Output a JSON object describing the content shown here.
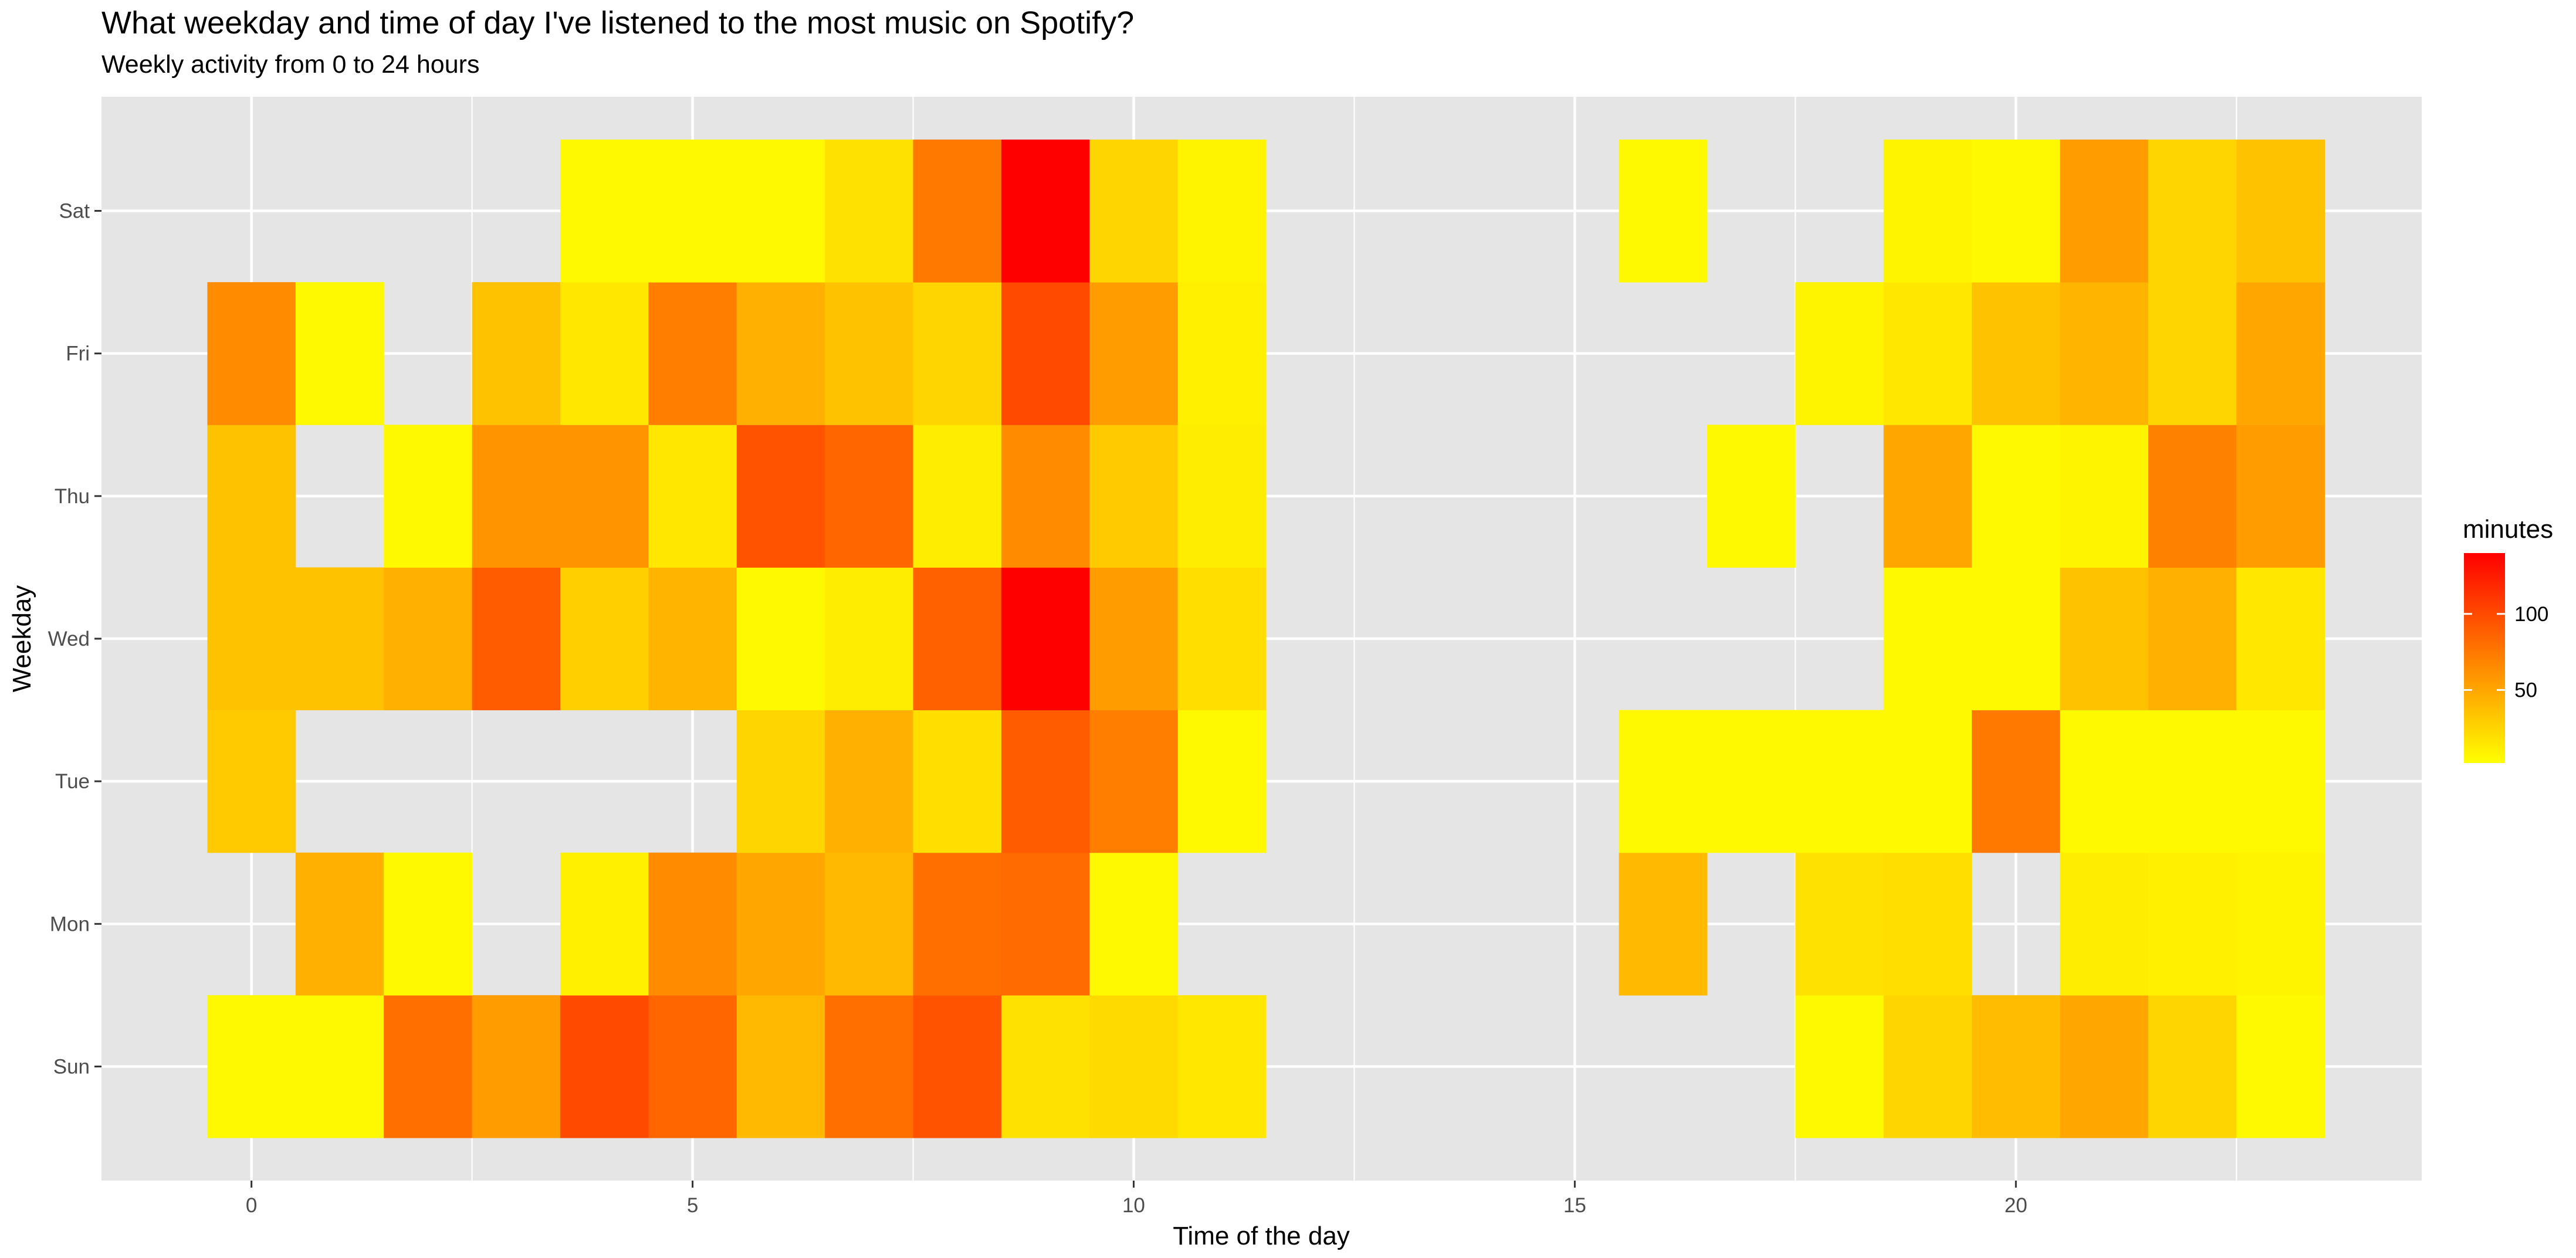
{
  "chart_data": {
    "type": "heatmap",
    "title": "What weekday and time of day I've listened to the most music on Spotify?",
    "subtitle": "Weekly activity from 0 to 24 hours",
    "xlabel": "Time of the day",
    "ylabel": "Weekday",
    "x_ticks": [
      "0",
      "5",
      "10",
      "15",
      "20"
    ],
    "xlim": [
      -1.7,
      24.6
    ],
    "y_categories": [
      "Sun",
      "Mon",
      "Tue",
      "Wed",
      "Thu",
      "Fri",
      "Sat"
    ],
    "legend": {
      "title": "minutes",
      "position": "right",
      "ticks": [
        "50",
        "100"
      ],
      "tick_values": [
        50,
        100
      ],
      "range": [
        2,
        140
      ],
      "color_low": "#ffff00",
      "color_high": "#ff0000"
    },
    "colors": {
      "panel": "#e5e5e5",
      "grid": "#ffffff"
    },
    "series": [
      {
        "name": "Sun",
        "values": [
          5,
          5,
          80,
          55,
          100,
          85,
          40,
          80,
          95,
          18,
          22,
          15,
          null,
          null,
          null,
          null,
          null,
          null,
          5,
          25,
          38,
          50,
          25,
          5
        ]
      },
      {
        "name": "Mon",
        "values": [
          null,
          45,
          5,
          null,
          10,
          65,
          50,
          40,
          80,
          82,
          5,
          null,
          null,
          null,
          null,
          null,
          40,
          null,
          18,
          20,
          null,
          12,
          10,
          8
        ]
      },
      {
        "name": "Tue",
        "values": [
          30,
          null,
          null,
          null,
          null,
          null,
          25,
          45,
          20,
          90,
          72,
          5,
          null,
          null,
          null,
          null,
          5,
          5,
          5,
          5,
          75,
          5,
          5,
          5
        ]
      },
      {
        "name": "Wed",
        "values": [
          35,
          35,
          45,
          90,
          28,
          42,
          5,
          12,
          88,
          140,
          55,
          20,
          null,
          null,
          null,
          null,
          null,
          null,
          null,
          5,
          5,
          35,
          45,
          15
        ]
      },
      {
        "name": "Thu",
        "values": [
          35,
          null,
          5,
          60,
          60,
          15,
          95,
          85,
          12,
          65,
          30,
          12,
          null,
          null,
          null,
          null,
          null,
          5,
          null,
          50,
          5,
          8,
          70,
          55
        ]
      },
      {
        "name": "Fri",
        "values": [
          65,
          5,
          null,
          35,
          15,
          72,
          45,
          35,
          25,
          100,
          55,
          10,
          null,
          null,
          null,
          null,
          null,
          null,
          8,
          15,
          35,
          42,
          25,
          50
        ]
      },
      {
        "name": "Sat",
        "values": [
          null,
          null,
          null,
          null,
          5,
          5,
          5,
          18,
          75,
          140,
          25,
          8,
          null,
          null,
          null,
          null,
          5,
          null,
          null,
          8,
          5,
          55,
          25,
          35
        ]
      }
    ]
  }
}
